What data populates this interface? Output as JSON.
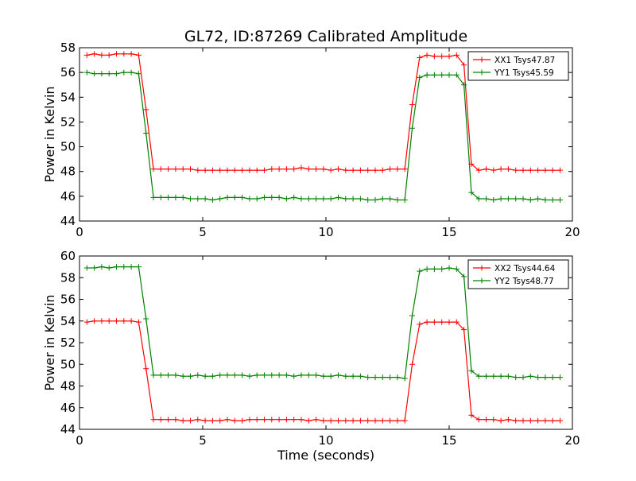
{
  "figure": {
    "title": "GL72, ID:87269 Calibrated Amplitude",
    "xlabel": "Time (seconds)",
    "ylabel": "Power in Kelvin"
  },
  "chart_data": [
    {
      "type": "line",
      "ylabel": "Power in Kelvin",
      "xlim": [
        0,
        20
      ],
      "ylim": [
        44,
        58
      ],
      "xticks": [
        "0",
        "5",
        "10",
        "15",
        "20"
      ],
      "yticks": [
        "44",
        "46",
        "48",
        "50",
        "52",
        "54",
        "56",
        "58"
      ],
      "legend_position": "top-right",
      "x": [
        0.3,
        0.6,
        0.9,
        1.2,
        1.5,
        1.8,
        2.1,
        2.4,
        2.7,
        3.0,
        3.3,
        3.6,
        3.9,
        4.2,
        4.5,
        4.8,
        5.1,
        5.4,
        5.7,
        6.0,
        6.3,
        6.6,
        6.9,
        7.2,
        7.5,
        7.8,
        8.1,
        8.4,
        8.7,
        9.0,
        9.3,
        9.6,
        9.9,
        10.2,
        10.5,
        10.8,
        11.1,
        11.4,
        11.7,
        12.0,
        12.3,
        12.6,
        12.9,
        13.2,
        13.5,
        13.8,
        14.1,
        14.4,
        14.7,
        15.0,
        15.3,
        15.6,
        15.9,
        16.2,
        16.5,
        16.8,
        17.1,
        17.4,
        17.7,
        18.0,
        18.3,
        18.6,
        18.9,
        19.2,
        19.5
      ],
      "series": [
        {
          "name": "XX1 Tsys47.87",
          "color": "#ff0000",
          "values": [
            57.4,
            57.5,
            57.4,
            57.4,
            57.5,
            57.5,
            57.5,
            57.4,
            53.0,
            48.2,
            48.2,
            48.2,
            48.2,
            48.2,
            48.2,
            48.1,
            48.1,
            48.1,
            48.1,
            48.1,
            48.1,
            48.1,
            48.1,
            48.1,
            48.1,
            48.2,
            48.2,
            48.2,
            48.2,
            48.3,
            48.2,
            48.2,
            48.2,
            48.1,
            48.2,
            48.1,
            48.1,
            48.1,
            48.1,
            48.1,
            48.1,
            48.2,
            48.2,
            48.2,
            53.4,
            57.2,
            57.4,
            57.3,
            57.3,
            57.3,
            57.4,
            56.6,
            48.6,
            48.1,
            48.2,
            48.1,
            48.2,
            48.2,
            48.1,
            48.1,
            48.1,
            48.1,
            48.1,
            48.1,
            48.1
          ]
        },
        {
          "name": "YY1 Tsys45.59",
          "color": "#008000",
          "values": [
            56.0,
            55.9,
            55.9,
            55.9,
            55.9,
            56.0,
            56.0,
            55.9,
            51.1,
            45.9,
            45.9,
            45.9,
            45.9,
            45.9,
            45.8,
            45.8,
            45.8,
            45.7,
            45.8,
            45.9,
            45.9,
            45.9,
            45.8,
            45.8,
            45.9,
            45.9,
            45.9,
            45.8,
            45.9,
            45.8,
            45.8,
            45.8,
            45.8,
            45.8,
            45.9,
            45.8,
            45.8,
            45.8,
            45.7,
            45.7,
            45.8,
            45.8,
            45.7,
            45.7,
            51.5,
            55.6,
            55.8,
            55.8,
            55.8,
            55.8,
            55.8,
            55.0,
            46.3,
            45.8,
            45.8,
            45.7,
            45.8,
            45.8,
            45.8,
            45.8,
            45.7,
            45.8,
            45.7,
            45.7,
            45.7
          ]
        }
      ]
    },
    {
      "type": "line",
      "xlabel": "Time (seconds)",
      "ylabel": "Power in Kelvin",
      "xlim": [
        0,
        20
      ],
      "ylim": [
        44,
        60
      ],
      "xticks": [
        "0",
        "5",
        "10",
        "15",
        "20"
      ],
      "yticks": [
        "44",
        "46",
        "48",
        "50",
        "52",
        "54",
        "56",
        "58",
        "60"
      ],
      "legend_position": "top-right",
      "x": [
        0.3,
        0.6,
        0.9,
        1.2,
        1.5,
        1.8,
        2.1,
        2.4,
        2.7,
        3.0,
        3.3,
        3.6,
        3.9,
        4.2,
        4.5,
        4.8,
        5.1,
        5.4,
        5.7,
        6.0,
        6.3,
        6.6,
        6.9,
        7.2,
        7.5,
        7.8,
        8.1,
        8.4,
        8.7,
        9.0,
        9.3,
        9.6,
        9.9,
        10.2,
        10.5,
        10.8,
        11.1,
        11.4,
        11.7,
        12.0,
        12.3,
        12.6,
        12.9,
        13.2,
        13.5,
        13.8,
        14.1,
        14.4,
        14.7,
        15.0,
        15.3,
        15.6,
        15.9,
        16.2,
        16.5,
        16.8,
        17.1,
        17.4,
        17.7,
        18.0,
        18.3,
        18.6,
        18.9,
        19.2,
        19.5
      ],
      "series": [
        {
          "name": "XX2 Tsys44.64",
          "color": "#ff0000",
          "values": [
            53.9,
            54.0,
            54.0,
            54.0,
            54.0,
            54.0,
            54.0,
            53.9,
            49.6,
            44.9,
            44.9,
            44.9,
            44.9,
            44.8,
            44.8,
            44.9,
            44.8,
            44.8,
            44.8,
            44.9,
            44.8,
            44.8,
            44.9,
            44.9,
            44.9,
            44.9,
            44.9,
            44.9,
            44.9,
            44.9,
            44.8,
            44.9,
            44.8,
            44.8,
            44.8,
            44.8,
            44.8,
            44.8,
            44.8,
            44.8,
            44.8,
            44.8,
            44.8,
            44.8,
            50.0,
            53.7,
            53.9,
            53.9,
            53.9,
            53.9,
            53.9,
            53.2,
            45.3,
            44.9,
            44.9,
            44.9,
            44.8,
            44.9,
            44.8,
            44.8,
            44.8,
            44.8,
            44.8,
            44.8,
            44.8
          ]
        },
        {
          "name": "YY2 Tsys48.77",
          "color": "#008000",
          "values": [
            58.9,
            58.9,
            59.0,
            58.9,
            59.0,
            59.0,
            59.0,
            59.0,
            54.2,
            49.0,
            49.0,
            49.0,
            49.0,
            48.9,
            48.9,
            49.0,
            48.9,
            48.9,
            49.0,
            49.0,
            49.0,
            49.0,
            48.9,
            49.0,
            49.0,
            49.0,
            49.0,
            49.0,
            48.9,
            49.0,
            49.0,
            49.0,
            48.9,
            48.9,
            49.0,
            48.9,
            48.9,
            48.9,
            48.8,
            48.8,
            48.8,
            48.8,
            48.8,
            48.7,
            54.5,
            58.6,
            58.8,
            58.8,
            58.8,
            58.9,
            58.8,
            58.1,
            49.4,
            48.9,
            48.9,
            48.9,
            48.9,
            48.9,
            48.8,
            48.8,
            48.9,
            48.8,
            48.8,
            48.8,
            48.8
          ]
        }
      ]
    }
  ]
}
